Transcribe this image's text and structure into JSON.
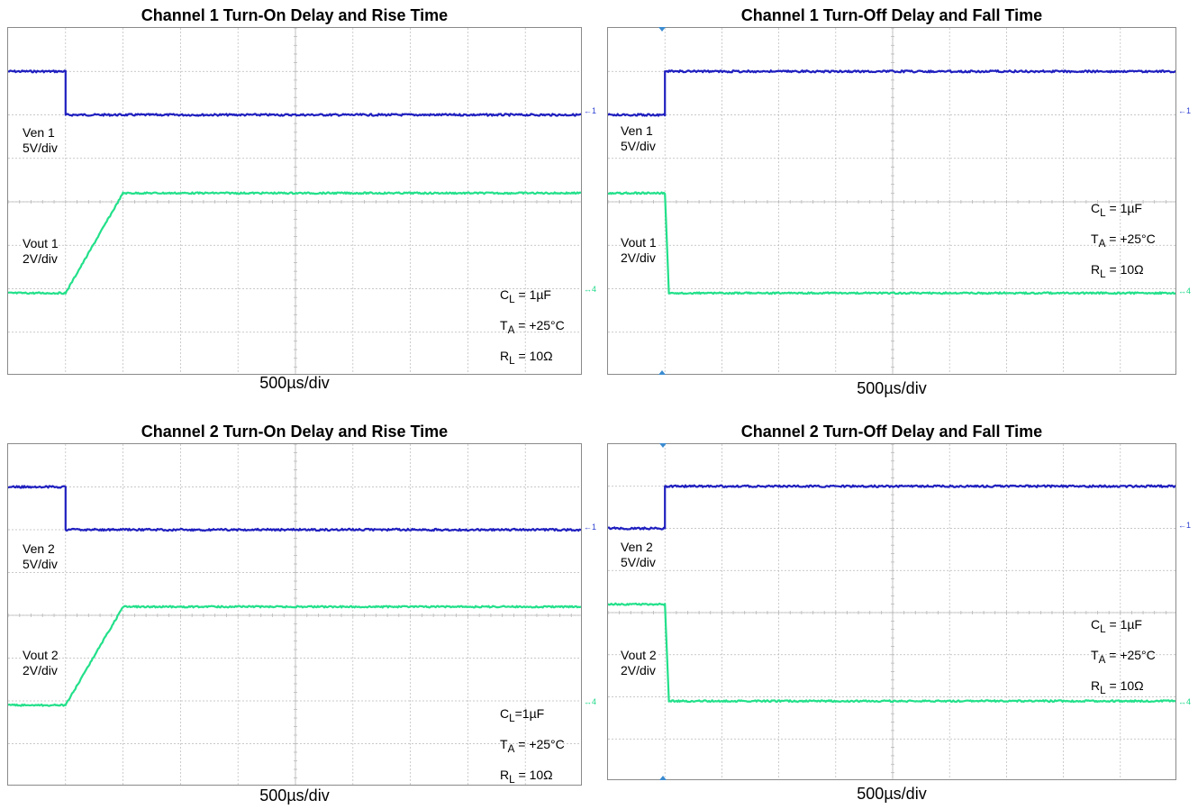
{
  "colors": {
    "ven": "#1f1fbf",
    "vout": "#22e08a",
    "grid": "#b8b8b8",
    "border": "#8a8a8a",
    "trigger": "#3b8bd0"
  },
  "chart_data": [
    {
      "type": "line",
      "title": "Channel 1 Turn-On Delay and Rise Time",
      "xlabel": "500µs/div",
      "x_divisions": 10,
      "y_divisions": 8,
      "ven_label": [
        "Ven 1",
        "5V/div"
      ],
      "vout_label": [
        "Vout 1",
        "2V/div"
      ],
      "annotations": [
        "1µF",
        "+25°C",
        "10Ω"
      ],
      "annotation_prefix": [
        "C",
        "T",
        "R"
      ],
      "annotation_sub": [
        "L",
        "A",
        "L"
      ],
      "annotation_sep": [
        " = ",
        " = ",
        " = "
      ],
      "series": [
        {
          "name": "Ven 1",
          "color": "blue",
          "x": [
            0,
            1,
            1,
            10
          ],
          "y": [
            7.0,
            7.0,
            6.0,
            6.0
          ]
        },
        {
          "name": "Vout 1",
          "color": "green",
          "x": [
            0,
            1,
            2,
            10
          ],
          "y": [
            1.9,
            1.9,
            4.2,
            4.2
          ]
        }
      ]
    },
    {
      "type": "line",
      "title": "Channel 1 Turn-Off Delay and Fall Time",
      "xlabel": "500µs/div",
      "x_divisions": 10,
      "y_divisions": 8,
      "ven_label": [
        "Ven 1",
        "5V/div"
      ],
      "vout_label": [
        "Vout 1",
        "2V/div"
      ],
      "annotations": [
        "1µF",
        "+25°C",
        "10Ω"
      ],
      "annotation_prefix": [
        "C",
        "T",
        "R"
      ],
      "annotation_sub": [
        "L",
        "A",
        "L"
      ],
      "annotation_sep": [
        " = ",
        " = ",
        " = "
      ],
      "series": [
        {
          "name": "Ven 1",
          "color": "blue",
          "x": [
            0,
            1,
            1,
            10
          ],
          "y": [
            6.0,
            6.0,
            7.0,
            7.0
          ]
        },
        {
          "name": "Vout 1",
          "color": "green",
          "x": [
            0,
            1,
            1.07,
            10
          ],
          "y": [
            4.2,
            4.2,
            1.9,
            1.9
          ]
        }
      ]
    },
    {
      "type": "line",
      "title": "Channel 2 Turn-On Delay and Rise Time",
      "xlabel": "500µs/div",
      "x_divisions": 10,
      "y_divisions": 8,
      "ven_label": [
        "Ven 2",
        "5V/div"
      ],
      "vout_label": [
        "Vout 2",
        "2V/div"
      ],
      "annotations": [
        "1µF",
        "+25°C",
        "10Ω"
      ],
      "annotation_prefix": [
        "C",
        "T",
        "R"
      ],
      "annotation_sub": [
        "L",
        "A",
        "L"
      ],
      "annotation_sep": [
        "=",
        " = ",
        " = "
      ],
      "series": [
        {
          "name": "Ven 2",
          "color": "blue",
          "x": [
            0,
            1,
            1,
            10
          ],
          "y": [
            7.0,
            7.0,
            6.0,
            6.0
          ]
        },
        {
          "name": "Vout 2",
          "color": "green",
          "x": [
            0,
            1,
            2,
            10
          ],
          "y": [
            1.9,
            1.9,
            4.2,
            4.2
          ]
        }
      ]
    },
    {
      "type": "line",
      "title": "Channel 2 Turn-Off Delay and Fall Time",
      "xlabel": "500µs/div",
      "x_divisions": 10,
      "y_divisions": 8,
      "ven_label": [
        "Ven 2",
        "5V/div"
      ],
      "vout_label": [
        "Vout 2",
        "2V/div"
      ],
      "annotations": [
        "1µF",
        "+25°C",
        "10Ω"
      ],
      "annotation_prefix": [
        "C",
        "T",
        "R"
      ],
      "annotation_sub": [
        "L",
        "A",
        "L"
      ],
      "annotation_sep": [
        " = ",
        " = ",
        " = "
      ],
      "series": [
        {
          "name": "Ven 2",
          "color": "blue",
          "x": [
            0,
            1,
            1,
            10
          ],
          "y": [
            6.0,
            6.0,
            7.0,
            7.0
          ]
        },
        {
          "name": "Vout 2",
          "color": "green",
          "x": [
            0,
            1,
            1.07,
            10
          ],
          "y": [
            4.2,
            4.2,
            1.9,
            1.9
          ]
        }
      ]
    }
  ],
  "markers": {
    "ch1": "1",
    "ch4": "4"
  }
}
